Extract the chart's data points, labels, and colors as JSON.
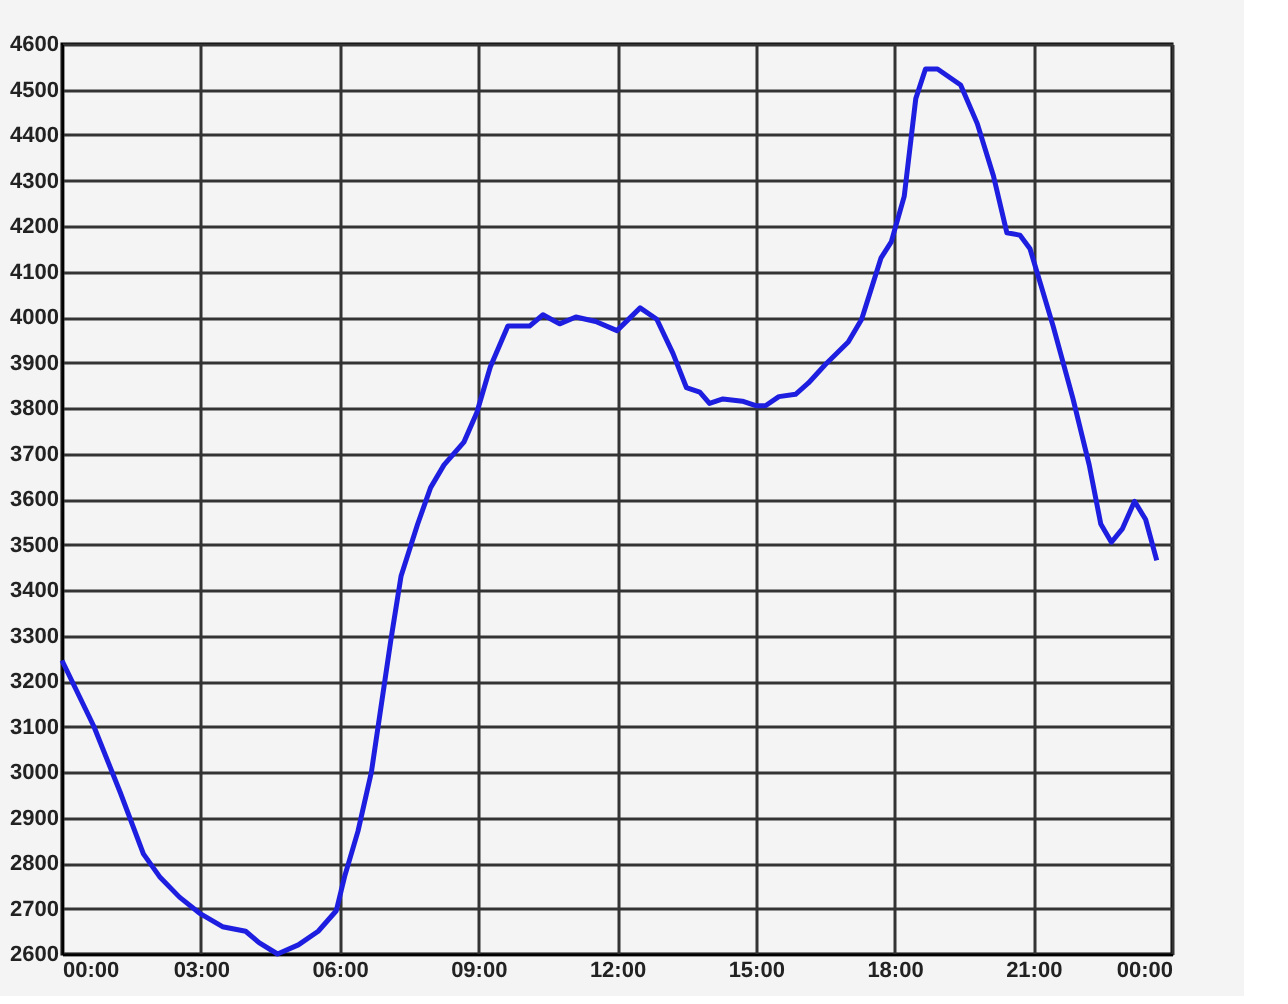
{
  "chart_data": {
    "type": "line",
    "x": [
      0,
      0.69,
      1.26,
      1.76,
      2.11,
      2.54,
      2.97,
      3.47,
      3.97,
      4.26,
      4.66,
      5.11,
      5.54,
      5.93,
      6.11,
      6.4,
      6.69,
      7.11,
      7.33,
      7.69,
      7.97,
      8.26,
      8.69,
      8.97,
      9.26,
      9.64,
      10.11,
      10.4,
      10.76,
      11.11,
      11.54,
      12,
      12.5,
      12.86,
      13.21,
      13.5,
      13.79,
      14,
      14.29,
      14.71,
      15,
      15.21,
      15.5,
      15.86,
      16.14,
      16.5,
      17,
      17.29,
      17.71,
      17.93,
      18.21,
      18.46,
      18.67,
      18.93,
      19.43,
      19.79,
      20.14,
      20.43,
      20.71,
      20.93,
      21.43,
      21.86,
      22.21,
      22.46,
      22.69,
      22.93,
      23.19,
      23.43,
      23.67
    ],
    "series": [
      {
        "color": "#1e1ee0",
        "values": [
          3245,
          3100,
          2955,
          2820,
          2770,
          2725,
          2690,
          2660,
          2650,
          2625,
          2600,
          2620,
          2650,
          2695,
          2770,
          2870,
          3000,
          3290,
          3430,
          3545,
          3625,
          3675,
          3725,
          3790,
          3890,
          3980,
          3980,
          4005,
          3985,
          4000,
          3990,
          3970,
          4020,
          3995,
          3920,
          3845,
          3835,
          3810,
          3820,
          3815,
          3805,
          3805,
          3825,
          3830,
          3855,
          3895,
          3945,
          3995,
          4130,
          4165,
          4265,
          4480,
          4545,
          4545,
          4510,
          4425,
          4310,
          4185,
          4180,
          4150,
          3980,
          3820,
          3675,
          3545,
          3505,
          3535,
          3595,
          3555,
          3465
        ]
      }
    ],
    "xlim": [
      0,
      24
    ],
    "xticks": [
      {
        "value": 0,
        "label": "00:00"
      },
      {
        "value": 3,
        "label": "03:00"
      },
      {
        "value": 6,
        "label": "06:00"
      },
      {
        "value": 9,
        "label": "09:00"
      },
      {
        "value": 12,
        "label": "12:00"
      },
      {
        "value": 15,
        "label": "15:00"
      },
      {
        "value": 18,
        "label": "18:00"
      },
      {
        "value": 21,
        "label": "21:00"
      },
      {
        "value": 24,
        "label": "00:00"
      }
    ],
    "ylim": [
      2600,
      4600
    ],
    "yticks": [
      2600,
      2700,
      2800,
      2900,
      3000,
      3100,
      3200,
      3300,
      3400,
      3500,
      3600,
      3700,
      3800,
      3900,
      4000,
      4100,
      4200,
      4300,
      4400,
      4500,
      4600
    ],
    "grid": true,
    "marker": "none",
    "line_style": "solid"
  }
}
